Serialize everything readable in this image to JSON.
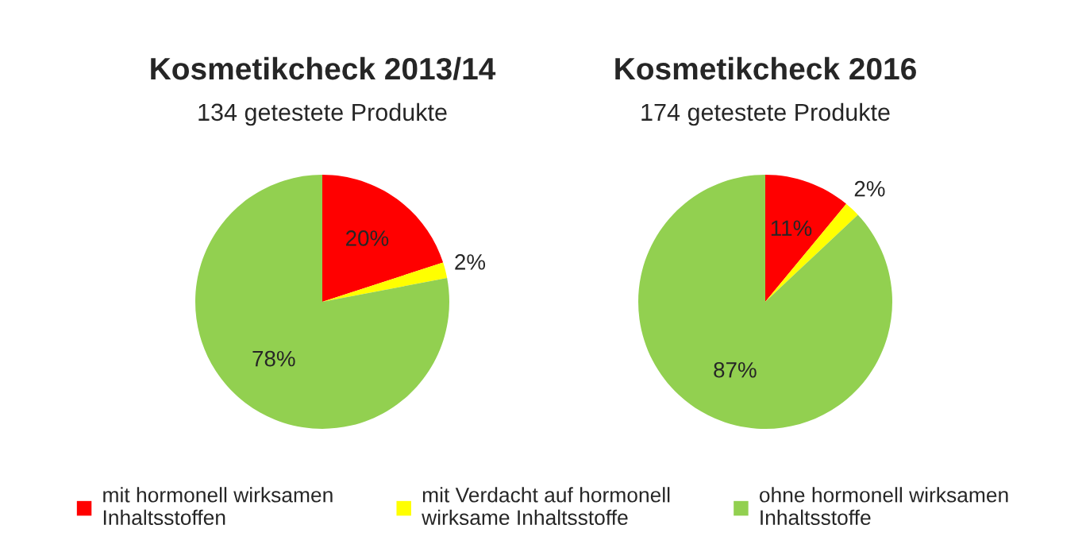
{
  "chart_data": [
    {
      "type": "pie",
      "title": "Kosmetikcheck 2013/14",
      "subtitle": "134 getestete Produkte",
      "categories": [
        "mit hormonell wirksamen\nInhaltsstoffen",
        "mit Verdacht auf hormonell\nwirksame Inhaltsstoffe",
        "ohne hormonell wirksamen\nInhaltsstoffe"
      ],
      "values": [
        20,
        2,
        78
      ],
      "colors": [
        "#ff0000",
        "#ffff00",
        "#92d050"
      ],
      "value_labels": [
        "20%",
        "2%",
        "78%"
      ],
      "legend": "bottom"
    },
    {
      "type": "pie",
      "title": "Kosmetikcheck 2016",
      "subtitle": "174 getestete Produkte",
      "categories": [
        null,
        null,
        null
      ],
      "values": [
        11,
        2,
        87
      ],
      "colors": [
        "#ff0000",
        "#ffff00",
        "#92d050"
      ],
      "value_labels": [
        "11%",
        "2%",
        "87%"
      ]
    }
  ]
}
